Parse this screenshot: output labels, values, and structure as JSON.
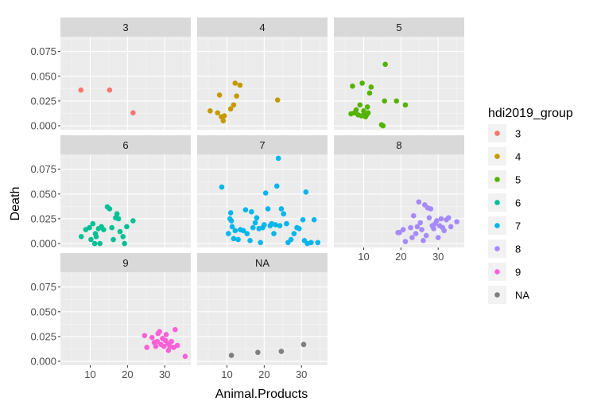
{
  "chart_data": {
    "type": "scatter",
    "layout": "facet_wrap",
    "xlabel": "Animal.Products",
    "ylabel": "Death",
    "xlim": [
      2,
      37
    ],
    "ylim": [
      -0.004,
      0.09
    ],
    "x_ticks": [
      10,
      20,
      30
    ],
    "y_ticks": [
      0.0,
      0.025,
      0.05,
      0.075
    ],
    "y_tick_labels": [
      "0.000",
      "0.025",
      "0.050",
      "0.075"
    ],
    "grid": true,
    "legend": {
      "title": "hdi2019_group",
      "position": "right",
      "entries": [
        "3",
        "4",
        "5",
        "6",
        "7",
        "8",
        "9",
        "NA"
      ]
    },
    "colors": {
      "3": "#F8766D",
      "4": "#C49A00",
      "5": "#53B400",
      "6": "#00C094",
      "7": "#00B6EB",
      "8": "#A58AFF",
      "9": "#FB61D7",
      "NA": "#7F7F7F"
    },
    "panels": [
      {
        "label": "3",
        "points": [
          [
            7.5,
            0.036
          ],
          [
            15.2,
            0.036
          ],
          [
            21.5,
            0.013
          ]
        ]
      },
      {
        "label": "4",
        "points": [
          [
            5.5,
            0.015
          ],
          [
            7.5,
            0.013
          ],
          [
            8.0,
            0.031
          ],
          [
            8.5,
            0.009
          ],
          [
            9.0,
            0.005
          ],
          [
            9.3,
            0.01
          ],
          [
            11.0,
            0.017
          ],
          [
            11.8,
            0.021
          ],
          [
            12.2,
            0.043
          ],
          [
            12.6,
            0.03
          ],
          [
            13.5,
            0.041
          ],
          [
            23.6,
            0.026
          ]
        ]
      },
      {
        "label": "5",
        "points": [
          [
            6.6,
            0.012
          ],
          [
            7.0,
            0.04
          ],
          [
            7.5,
            0.013
          ],
          [
            8.0,
            0.016
          ],
          [
            8.5,
            0.011
          ],
          [
            9.0,
            0.021
          ],
          [
            9.4,
            0.01
          ],
          [
            9.6,
            0.043
          ],
          [
            10.0,
            0.015
          ],
          [
            10.2,
            0.012
          ],
          [
            10.5,
            0.009
          ],
          [
            10.8,
            0.011
          ],
          [
            11.0,
            0.019
          ],
          [
            11.2,
            0.013
          ],
          [
            11.6,
            0.033
          ],
          [
            12.0,
            0.039
          ],
          [
            14.8,
            0.001
          ],
          [
            15.2,
            0.0
          ],
          [
            15.6,
            0.025
          ],
          [
            15.8,
            0.062
          ],
          [
            18.8,
            0.025
          ],
          [
            21.2,
            0.021
          ]
        ]
      },
      {
        "label": "6",
        "points": [
          [
            7.6,
            0.007
          ],
          [
            8.8,
            0.014
          ],
          [
            9.8,
            0.016
          ],
          [
            10.2,
            0.004
          ],
          [
            10.7,
            0.02
          ],
          [
            11.2,
            0.0
          ],
          [
            11.4,
            0.01
          ],
          [
            11.6,
            0.007
          ],
          [
            12.2,
            0.015
          ],
          [
            12.6,
            0.0
          ],
          [
            13.0,
            0.017
          ],
          [
            13.6,
            0.014
          ],
          [
            14.6,
            0.037
          ],
          [
            15.2,
            0.035
          ],
          [
            15.8,
            0.016
          ],
          [
            16.2,
            0.004
          ],
          [
            16.8,
            0.026
          ],
          [
            17.2,
            0.03
          ],
          [
            17.6,
            0.025
          ],
          [
            18.0,
            0.012
          ],
          [
            18.8,
            0.007
          ],
          [
            19.2,
            0.0
          ],
          [
            19.8,
            0.017
          ],
          [
            21.5,
            0.023
          ]
        ]
      },
      {
        "label": "7",
        "points": [
          [
            8.6,
            0.057
          ],
          [
            10.4,
            0.01
          ],
          [
            10.8,
            0.025
          ],
          [
            11.0,
            0.031
          ],
          [
            11.2,
            0.023
          ],
          [
            11.4,
            0.017
          ],
          [
            11.8,
            0.005
          ],
          [
            12.2,
            0.013
          ],
          [
            13.0,
            0.004
          ],
          [
            13.6,
            0.014
          ],
          [
            14.4,
            0.013
          ],
          [
            15.0,
            0.034
          ],
          [
            15.4,
            0.01
          ],
          [
            16.2,
            0.003
          ],
          [
            16.6,
            0.032
          ],
          [
            17.0,
            0.016
          ],
          [
            17.6,
            0.021
          ],
          [
            18.0,
            0.026
          ],
          [
            18.6,
            0.015
          ],
          [
            19.0,
            0.001
          ],
          [
            19.6,
            0.016
          ],
          [
            20.0,
            0.019
          ],
          [
            20.4,
            0.051
          ],
          [
            21.0,
            0.035
          ],
          [
            21.6,
            0.018
          ],
          [
            22.0,
            0.02
          ],
          [
            22.6,
            0.01
          ],
          [
            23.0,
            0.019
          ],
          [
            23.4,
            0.058
          ],
          [
            23.8,
            0.086
          ],
          [
            24.2,
            0.018
          ],
          [
            24.6,
            0.035
          ],
          [
            25.2,
            0.03
          ],
          [
            26.0,
            0.02
          ],
          [
            26.4,
            0.001
          ],
          [
            27.2,
            0.004
          ],
          [
            28.0,
            0.01
          ],
          [
            28.8,
            0.016
          ],
          [
            29.4,
            0.015
          ],
          [
            30.4,
            0.024
          ],
          [
            30.8,
            0.003
          ],
          [
            31.2,
            0.052
          ],
          [
            31.6,
            0.0
          ],
          [
            32.6,
            0.001
          ],
          [
            33.4,
            0.024
          ],
          [
            34.4,
            0.001
          ]
        ]
      },
      {
        "label": "8",
        "points": [
          [
            19.2,
            0.011
          ],
          [
            19.6,
            0.011
          ],
          [
            20.6,
            0.014
          ],
          [
            21.2,
            0.002
          ],
          [
            22.6,
            0.016
          ],
          [
            23.0,
            0.006
          ],
          [
            23.4,
            0.028
          ],
          [
            24.0,
            0.01
          ],
          [
            24.4,
            0.017
          ],
          [
            24.8,
            0.042
          ],
          [
            25.2,
            0.021
          ],
          [
            25.6,
            0.014
          ],
          [
            26.0,
            0.003
          ],
          [
            26.4,
            0.039
          ],
          [
            26.8,
            0.008
          ],
          [
            27.2,
            0.036
          ],
          [
            27.6,
            0.026
          ],
          [
            28.0,
            0.035
          ],
          [
            28.4,
            0.018
          ],
          [
            28.8,
            0.015
          ],
          [
            29.2,
            0.02
          ],
          [
            29.6,
            0.023
          ],
          [
            30.0,
            0.006
          ],
          [
            30.4,
            0.018
          ],
          [
            30.8,
            0.025
          ],
          [
            31.2,
            0.016
          ],
          [
            31.6,
            0.013
          ],
          [
            32.2,
            0.024
          ],
          [
            32.8,
            0.026
          ],
          [
            33.4,
            0.017
          ],
          [
            35.0,
            0.022
          ]
        ]
      },
      {
        "label": "9",
        "points": [
          [
            24.6,
            0.026
          ],
          [
            25.2,
            0.014
          ],
          [
            26.6,
            0.024
          ],
          [
            27.2,
            0.019
          ],
          [
            27.6,
            0.015
          ],
          [
            28.0,
            0.02
          ],
          [
            28.2,
            0.028
          ],
          [
            28.6,
            0.03
          ],
          [
            29.0,
            0.017
          ],
          [
            29.4,
            0.023
          ],
          [
            29.8,
            0.015
          ],
          [
            30.2,
            0.021
          ],
          [
            30.4,
            0.027
          ],
          [
            30.8,
            0.018
          ],
          [
            31.0,
            0.011
          ],
          [
            31.4,
            0.015
          ],
          [
            31.8,
            0.02
          ],
          [
            32.4,
            0.014
          ],
          [
            32.8,
            0.032
          ],
          [
            33.4,
            0.016
          ],
          [
            35.5,
            0.005
          ]
        ]
      },
      {
        "label": "NA",
        "points": [
          [
            11.2,
            0.006
          ],
          [
            18.3,
            0.009
          ],
          [
            24.6,
            0.01
          ],
          [
            30.6,
            0.017
          ]
        ]
      }
    ]
  }
}
